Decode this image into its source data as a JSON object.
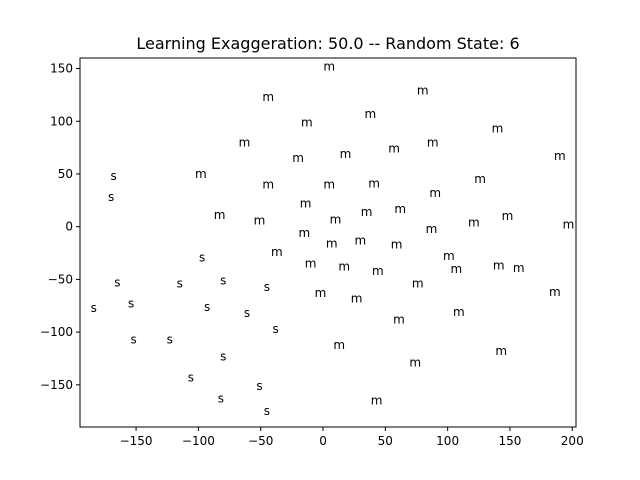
{
  "chart_data": {
    "type": "scatter",
    "title": "Learning Exaggeration: 50.0 -- Random State: 6",
    "xlabel": "",
    "ylabel": "",
    "xlim": [
      -195,
      203
    ],
    "ylim": [
      -190,
      160
    ],
    "xticks": [
      -150,
      -100,
      -50,
      0,
      50,
      100,
      150,
      200
    ],
    "xtick_labels": [
      "−150",
      "−100",
      "−50",
      "0",
      "50",
      "100",
      "150",
      "200"
    ],
    "yticks": [
      -150,
      -100,
      -50,
      0,
      50,
      100,
      150
    ],
    "ytick_labels": [
      "−150",
      "−100",
      "−50",
      "0",
      "50",
      "100",
      "150"
    ],
    "grid": false,
    "marker_style": "text",
    "points": [
      {
        "label": "m",
        "x": 5,
        "y": 152
      },
      {
        "label": "m",
        "x": -44,
        "y": 123
      },
      {
        "label": "m",
        "x": 80,
        "y": 129
      },
      {
        "label": "m",
        "x": 38,
        "y": 107
      },
      {
        "label": "m",
        "x": -13,
        "y": 99
      },
      {
        "label": "m",
        "x": 140,
        "y": 93
      },
      {
        "label": "m",
        "x": -63,
        "y": 80
      },
      {
        "label": "m",
        "x": 88,
        "y": 80
      },
      {
        "label": "m",
        "x": 57,
        "y": 74
      },
      {
        "label": "m",
        "x": 18,
        "y": 69
      },
      {
        "label": "m",
        "x": -20,
        "y": 65
      },
      {
        "label": "m",
        "x": 190,
        "y": 67
      },
      {
        "label": "m",
        "x": -98,
        "y": 50
      },
      {
        "label": "m",
        "x": 126,
        "y": 45
      },
      {
        "label": "m",
        "x": -44,
        "y": 40
      },
      {
        "label": "m",
        "x": 5,
        "y": 40
      },
      {
        "label": "m",
        "x": 41,
        "y": 41
      },
      {
        "label": "m",
        "x": 90,
        "y": 32
      },
      {
        "label": "m",
        "x": -14,
        "y": 22
      },
      {
        "label": "m",
        "x": -83,
        "y": 11
      },
      {
        "label": "m",
        "x": -51,
        "y": 6
      },
      {
        "label": "m",
        "x": 35,
        "y": 14
      },
      {
        "label": "m",
        "x": 62,
        "y": 17
      },
      {
        "label": "m",
        "x": 148,
        "y": 10
      },
      {
        "label": "m",
        "x": 10,
        "y": 7
      },
      {
        "label": "m",
        "x": 121,
        "y": 4
      },
      {
        "label": "m",
        "x": 197,
        "y": 2
      },
      {
        "label": "m",
        "x": 87,
        "y": -2
      },
      {
        "label": "m",
        "x": -15,
        "y": -6
      },
      {
        "label": "m",
        "x": 30,
        "y": -13
      },
      {
        "label": "m",
        "x": 7,
        "y": -16
      },
      {
        "label": "m",
        "x": 59,
        "y": -17
      },
      {
        "label": "m",
        "x": -37,
        "y": -24
      },
      {
        "label": "m",
        "x": 101,
        "y": -28
      },
      {
        "label": "m",
        "x": -10,
        "y": -35
      },
      {
        "label": "m",
        "x": 17,
        "y": -38
      },
      {
        "label": "m",
        "x": 44,
        "y": -42
      },
      {
        "label": "m",
        "x": 107,
        "y": -40
      },
      {
        "label": "m",
        "x": 141,
        "y": -37
      },
      {
        "label": "m",
        "x": 157,
        "y": -39
      },
      {
        "label": "m",
        "x": 76,
        "y": -54
      },
      {
        "label": "m",
        "x": -2,
        "y": -63
      },
      {
        "label": "m",
        "x": 27,
        "y": -68
      },
      {
        "label": "m",
        "x": 186,
        "y": -62
      },
      {
        "label": "m",
        "x": 109,
        "y": -81
      },
      {
        "label": "m",
        "x": 61,
        "y": -88
      },
      {
        "label": "m",
        "x": 13,
        "y": -112
      },
      {
        "label": "m",
        "x": 143,
        "y": -118
      },
      {
        "label": "m",
        "x": 74,
        "y": -129
      },
      {
        "label": "m",
        "x": 43,
        "y": -165
      },
      {
        "label": "s",
        "x": -168,
        "y": 48
      },
      {
        "label": "s",
        "x": -170,
        "y": 28
      },
      {
        "label": "s",
        "x": -97,
        "y": -29
      },
      {
        "label": "s",
        "x": -165,
        "y": -53
      },
      {
        "label": "s",
        "x": -115,
        "y": -54
      },
      {
        "label": "s",
        "x": -80,
        "y": -51
      },
      {
        "label": "s",
        "x": -45,
        "y": -57
      },
      {
        "label": "s",
        "x": -154,
        "y": -73
      },
      {
        "label": "s",
        "x": -184,
        "y": -77
      },
      {
        "label": "s",
        "x": -93,
        "y": -76
      },
      {
        "label": "s",
        "x": -61,
        "y": -82
      },
      {
        "label": "s",
        "x": -38,
        "y": -97
      },
      {
        "label": "s",
        "x": -152,
        "y": -107
      },
      {
        "label": "s",
        "x": -123,
        "y": -107
      },
      {
        "label": "s",
        "x": -80,
        "y": -123
      },
      {
        "label": "s",
        "x": -106,
        "y": -143
      },
      {
        "label": "s",
        "x": -51,
        "y": -151
      },
      {
        "label": "s",
        "x": -82,
        "y": -163
      },
      {
        "label": "s",
        "x": -45,
        "y": -175
      }
    ]
  }
}
